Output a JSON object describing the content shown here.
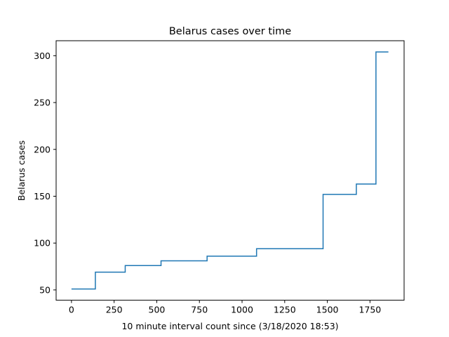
{
  "chart_data": {
    "type": "line",
    "title": "Belarus cases over time",
    "xlabel": "10 minute interval count since (3/18/2020 18:53)",
    "ylabel": "Belarus cases",
    "xlim": [
      -90,
      1950
    ],
    "ylim": [
      39,
      316
    ],
    "x_ticks": [
      0,
      250,
      500,
      750,
      1000,
      1250,
      1500,
      1750
    ],
    "y_ticks": [
      50,
      100,
      150,
      200,
      250,
      300
    ],
    "grid": false,
    "legend": "none",
    "step": "post",
    "series": [
      {
        "color": "#1f77b4",
        "x": [
          0,
          140,
          315,
          525,
          795,
          1085,
          1475,
          1670,
          1785,
          1858
        ],
        "y": [
          51,
          69,
          76,
          81,
          86,
          94,
          152,
          163,
          304,
          304
        ]
      }
    ]
  }
}
